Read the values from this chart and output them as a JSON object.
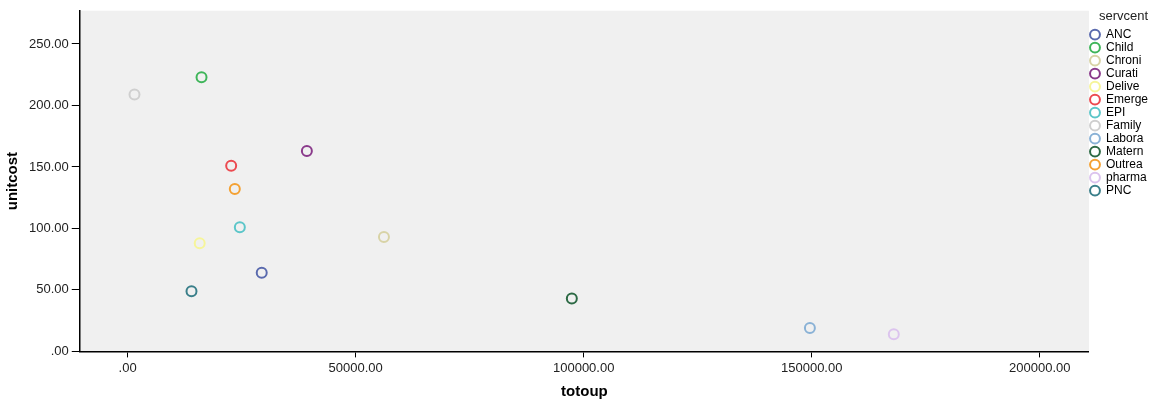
{
  "chart_data": {
    "type": "scatter",
    "xlabel": "totoup",
    "ylabel": "unitcost",
    "legend_title": "servcent",
    "legend": "right",
    "grid": false,
    "marker": "circle",
    "xlim": [
      -10500,
      210800
    ],
    "ylim": [
      0,
      277
    ],
    "xticks": [
      {
        "value": 0,
        "label": ".00"
      },
      {
        "value": 50000,
        "label": "50000.00"
      },
      {
        "value": 100000,
        "label": "100000.00"
      },
      {
        "value": 150000,
        "label": "150000.00"
      },
      {
        "value": 200000,
        "label": "200000.00"
      }
    ],
    "yticks": [
      {
        "value": 0,
        "label": ".00"
      },
      {
        "value": 50,
        "label": "50.00"
      },
      {
        "value": 100,
        "label": "100.00"
      },
      {
        "value": 150,
        "label": "150.00"
      },
      {
        "value": 200,
        "label": "200.00"
      },
      {
        "value": 250,
        "label": "250.00"
      }
    ],
    "series": [
      {
        "name": "ANC",
        "color": "#5a6aae",
        "x": [
          29400
        ],
        "values": [
          64
        ]
      },
      {
        "name": "Child",
        "color": "#3fb55a",
        "x": [
          16200
        ],
        "values": [
          223
        ]
      },
      {
        "name": "Chroni",
        "color": "#d8d3a6",
        "x": [
          56200
        ],
        "values": [
          93
        ]
      },
      {
        "name": "Curati",
        "color": "#8a3a8b",
        "x": [
          39300
        ],
        "values": [
          163
        ]
      },
      {
        "name": "Delive",
        "color": "#f6f59a",
        "x": [
          15800
        ],
        "values": [
          88
        ]
      },
      {
        "name": "Emerge",
        "color": "#ec4a50",
        "x": [
          22700
        ],
        "values": [
          151
        ]
      },
      {
        "name": "EPI",
        "color": "#5cc6c9",
        "x": [
          24600
        ],
        "values": [
          101
        ]
      },
      {
        "name": "Family",
        "color": "#cfcfcf",
        "x": [
          1500
        ],
        "values": [
          209
        ]
      },
      {
        "name": "Labora",
        "color": "#8ab2d6",
        "x": [
          149600
        ],
        "values": [
          19
        ]
      },
      {
        "name": "Matern",
        "color": "#2d6a45",
        "x": [
          97400
        ],
        "values": [
          43
        ]
      },
      {
        "name": "Outrea",
        "color": "#f4a133",
        "x": [
          23500
        ],
        "values": [
          132
        ]
      },
      {
        "name": "pharma",
        "color": "#dcc4ee",
        "x": [
          168000
        ],
        "values": [
          14
        ]
      },
      {
        "name": "PNC",
        "color": "#3a7f8a",
        "x": [
          14000
        ],
        "values": [
          49
        ]
      }
    ]
  }
}
